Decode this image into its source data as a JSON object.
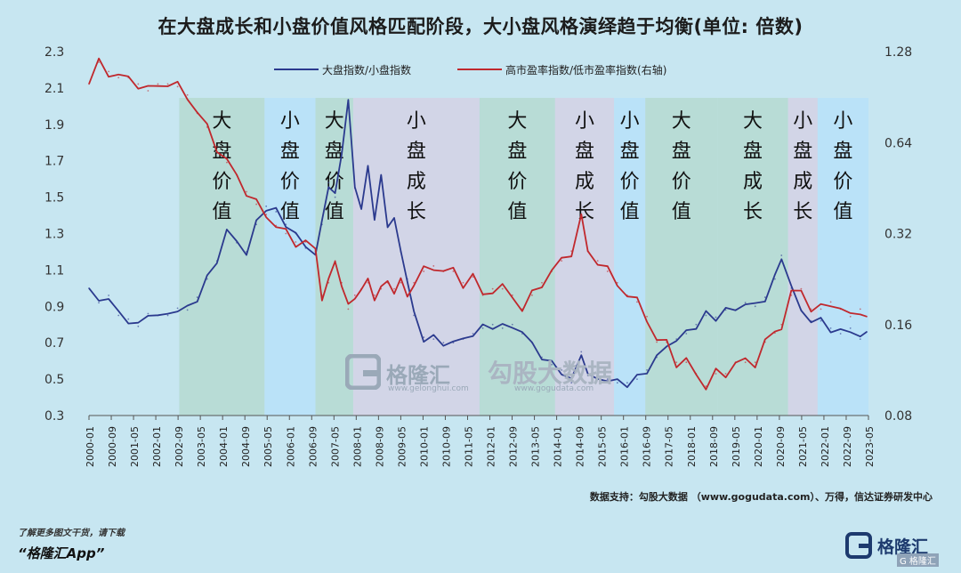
{
  "title": "在大盘成长和小盘价值风格匹配阶段，大小盘风格演绎趋于均衡(单位: 倍数)",
  "source": "数据支持：勾股大数据 （www.gogudata.com）、万得，信达证券研发中心",
  "promo": {
    "line1": "了解更多图文干货，请下载",
    "line2": "“格隆汇App”"
  },
  "logo": {
    "name": "格隆汇",
    "sub": "G 格隆汇"
  },
  "watermark": {
    "brand": "格隆汇",
    "brand_url": "www.gelonghui.com",
    "brand2": "勾股大数据",
    "brand2_url": "www.gogudata.com"
  },
  "chart_data": {
    "type": "line",
    "title": "在大盘成长和小盘价值风格匹配阶段，大小盘风格演绎趋于均衡(单位: 倍数)",
    "x_ticks": [
      "2000-01",
      "2000-09",
      "2001-05",
      "2002-01",
      "2002-09",
      "2003-05",
      "2004-01",
      "2004-09",
      "2005-05",
      "2006-01",
      "2006-09",
      "2007-05",
      "2008-01",
      "2008-09",
      "2009-05",
      "2010-01",
      "2010-09",
      "2011-05",
      "2012-01",
      "2012-09",
      "2013-05",
      "2014-01",
      "2014-09",
      "2015-05",
      "2016-01",
      "2016-09",
      "2017-05",
      "2018-01",
      "2018-09",
      "2019-05",
      "2020-01",
      "2020-09",
      "2021-05",
      "2022-01",
      "2022-09",
      "2023-05"
    ],
    "left_axis": {
      "ticks": [
        "0.3",
        "0.5",
        "0.7",
        "0.9",
        "1.1",
        "1.3",
        "1.5",
        "1.7",
        "1.9",
        "2.1",
        "2.3"
      ],
      "ylim": [
        0.3,
        2.3
      ]
    },
    "right_axis": {
      "ticks": [
        "0.08",
        "0.16",
        "0.32",
        "0.64",
        "1.28"
      ],
      "scale": "log",
      "ylim": [
        0.08,
        1.28
      ]
    },
    "legend": {
      "placement": "top-center"
    },
    "grid": false,
    "colors": {
      "blue": "#2b3a8e",
      "red": "#c0282d",
      "band_green": "#b3d8cc",
      "band_blue": "#b6e0fa",
      "band_purple": "#d6cfe3"
    },
    "regimes": [
      {
        "start": 2002.75,
        "end": 2005.35,
        "label": "大盘价值",
        "color": "#b3d8cc"
      },
      {
        "start": 2005.35,
        "end": 2006.9,
        "label": "小盘价值",
        "color": "#b6e0fa"
      },
      {
        "start": 2006.9,
        "end": 2008.05,
        "label": "大盘价值",
        "color": "#b3d8cc"
      },
      {
        "start": 2008.05,
        "end": 2011.9,
        "label": "小盘成长",
        "color": "#d6cfe3"
      },
      {
        "start": 2011.9,
        "end": 2014.2,
        "label": "大盘价值",
        "color": "#b3d8cc"
      },
      {
        "start": 2014.2,
        "end": 2016.0,
        "label": "小盘成长",
        "color": "#d6cfe3"
      },
      {
        "start": 2016.0,
        "end": 2016.95,
        "label": "小盘价值",
        "color": "#b6e0fa"
      },
      {
        "start": 2016.95,
        "end": 2019.15,
        "label": "大盘价值",
        "color": "#b3d8cc"
      },
      {
        "start": 2019.15,
        "end": 2021.3,
        "label": "大盘成长",
        "color": "#b3d8cc"
      },
      {
        "start": 2021.3,
        "end": 2022.2,
        "label": "小盘成长",
        "color": "#d6cfe3"
      },
      {
        "start": 2022.2,
        "end": 2024.1,
        "label": "小盘价值",
        "color": "#b6e0fa"
      }
    ],
    "series": [
      {
        "name": "大盘指数/小盘指数",
        "axis": "left",
        "color": "#2b3a8e",
        "x": [
          2000.0,
          2000.3,
          2000.6,
          2000.9,
          2001.2,
          2001.5,
          2001.8,
          2002.1,
          2002.4,
          2002.7,
          2003.0,
          2003.3,
          2003.6,
          2003.9,
          2004.2,
          2004.5,
          2004.8,
          2005.1,
          2005.4,
          2005.7,
          2006.0,
          2006.3,
          2006.6,
          2006.9,
          2007.1,
          2007.3,
          2007.5,
          2007.7,
          2007.9,
          2008.1,
          2008.3,
          2008.5,
          2008.7,
          2008.9,
          2009.1,
          2009.3,
          2009.5,
          2009.7,
          2009.9,
          2010.2,
          2010.5,
          2010.8,
          2011.1,
          2011.4,
          2011.7,
          2012.0,
          2012.3,
          2012.6,
          2012.9,
          2013.2,
          2013.5,
          2013.8,
          2014.1,
          2014.4,
          2014.7,
          2015.0,
          2015.2,
          2015.5,
          2015.8,
          2016.1,
          2016.4,
          2016.7,
          2017.0,
          2017.3,
          2017.6,
          2017.9,
          2018.2,
          2018.5,
          2018.8,
          2019.1,
          2019.4,
          2019.7,
          2020.0,
          2020.3,
          2020.6,
          2020.9,
          2021.1,
          2021.4,
          2021.7,
          2022.0,
          2022.3,
          2022.6,
          2022.9,
          2023.2,
          2023.5,
          2023.7
        ],
        "y": [
          1.0,
          0.92,
          0.96,
          0.85,
          0.83,
          0.79,
          0.86,
          0.85,
          0.85,
          0.89,
          0.88,
          0.95,
          1.05,
          1.15,
          1.32,
          1.25,
          1.2,
          1.35,
          1.45,
          1.42,
          1.35,
          1.3,
          1.22,
          1.2,
          1.35,
          1.58,
          1.5,
          1.75,
          2.03,
          1.55,
          1.45,
          1.65,
          1.4,
          1.6,
          1.35,
          1.38,
          1.2,
          1.05,
          0.85,
          0.73,
          0.72,
          0.7,
          0.7,
          0.72,
          0.75,
          0.78,
          0.8,
          0.78,
          0.8,
          0.75,
          0.7,
          0.62,
          0.58,
          0.55,
          0.48,
          0.65,
          0.52,
          0.5,
          0.5,
          0.48,
          0.48,
          0.5,
          0.55,
          0.62,
          0.68,
          0.72,
          0.75,
          0.8,
          0.85,
          0.84,
          0.88,
          0.88,
          0.92,
          0.9,
          0.95,
          1.05,
          1.18,
          1.0,
          0.88,
          0.82,
          0.82,
          0.78,
          0.75,
          0.78,
          0.72,
          0.76
        ]
      },
      {
        "name": "高市盈率指数/低市盈率指数(右轴)",
        "axis": "right",
        "color": "#c0282d",
        "x": [
          2000.0,
          2000.3,
          2000.6,
          2000.9,
          2001.2,
          2001.5,
          2001.8,
          2002.1,
          2002.4,
          2002.7,
          2003.0,
          2003.3,
          2003.6,
          2003.9,
          2004.2,
          2004.5,
          2004.8,
          2005.1,
          2005.4,
          2005.7,
          2006.0,
          2006.3,
          2006.6,
          2006.9,
          2007.1,
          2007.3,
          2007.5,
          2007.7,
          2007.9,
          2008.1,
          2008.3,
          2008.5,
          2008.7,
          2008.9,
          2009.1,
          2009.3,
          2009.5,
          2009.7,
          2009.9,
          2010.2,
          2010.5,
          2010.8,
          2011.1,
          2011.4,
          2011.7,
          2012.0,
          2012.3,
          2012.6,
          2012.9,
          2013.2,
          2013.5,
          2013.8,
          2014.1,
          2014.4,
          2014.7,
          2015.0,
          2015.2,
          2015.5,
          2015.8,
          2016.1,
          2016.4,
          2016.7,
          2017.0,
          2017.3,
          2017.6,
          2017.9,
          2018.2,
          2018.5,
          2018.8,
          2019.1,
          2019.4,
          2019.7,
          2020.0,
          2020.3,
          2020.6,
          2020.9,
          2021.1,
          2021.4,
          2021.7,
          2022.0,
          2022.3,
          2022.6,
          2022.9,
          2023.2,
          2023.5,
          2023.7
        ],
        "y": [
          1.0,
          1.18,
          1.1,
          1.05,
          1.05,
          1.0,
          0.95,
          1.0,
          1.0,
          0.98,
          0.92,
          0.8,
          0.72,
          0.62,
          0.55,
          0.5,
          0.44,
          0.4,
          0.37,
          0.34,
          0.32,
          0.3,
          0.3,
          0.28,
          0.2,
          0.22,
          0.26,
          0.22,
          0.18,
          0.2,
          0.21,
          0.22,
          0.2,
          0.21,
          0.22,
          0.21,
          0.22,
          0.2,
          0.22,
          0.24,
          0.25,
          0.24,
          0.24,
          0.22,
          0.23,
          0.2,
          0.21,
          0.21,
          0.2,
          0.18,
          0.2,
          0.22,
          0.24,
          0.26,
          0.28,
          0.36,
          0.28,
          0.26,
          0.24,
          0.22,
          0.2,
          0.19,
          0.17,
          0.14,
          0.14,
          0.12,
          0.12,
          0.11,
          0.1,
          0.11,
          0.11,
          0.12,
          0.12,
          0.12,
          0.14,
          0.15,
          0.16,
          0.2,
          0.21,
          0.18,
          0.18,
          0.19,
          0.18,
          0.17,
          0.18,
          0.17
        ]
      }
    ]
  }
}
